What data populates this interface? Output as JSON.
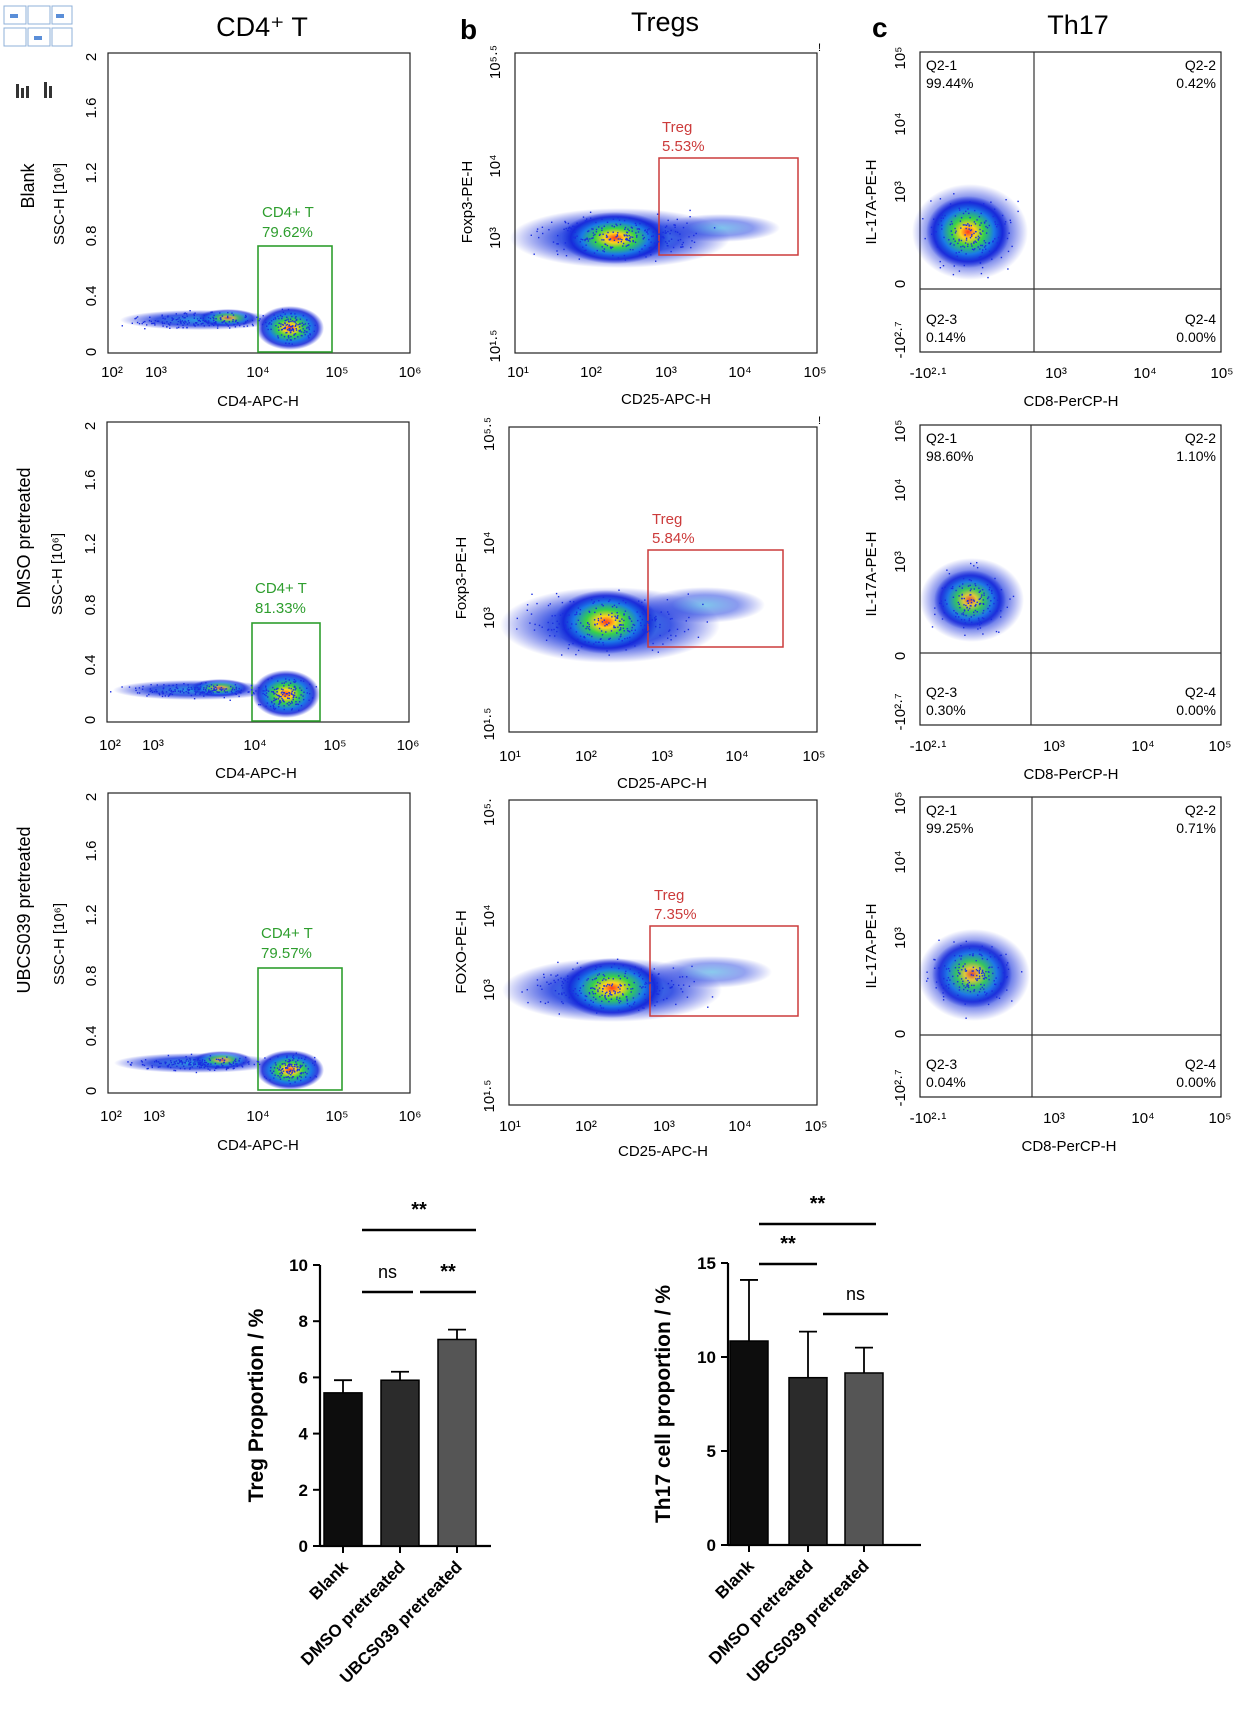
{
  "colors": {
    "cd4_gate": "#2e9e2e",
    "treg_gate": "#cc3b3b",
    "bar_blank": "#0d0d0d",
    "bar_dmso": "#2b2b2b",
    "bar_ubcs": "#555555",
    "quad_line": "#333333"
  },
  "column_titles": {
    "a": "CD4⁺ T",
    "b": "Tregs",
    "c": "Th17"
  },
  "panel_letters": {
    "b": "b",
    "c": "c"
  },
  "row_labels": [
    "Blank",
    "DMSO pretreated",
    "UBCS039 pretreated"
  ],
  "cd4_panels": [
    {
      "ylabel": "SSC-H [10⁶]",
      "xlabel": "CD4-APC-H",
      "gate_name": "CD4+ T",
      "gate_pct": "79.62%"
    },
    {
      "ylabel": "SSC-H [10⁶]",
      "xlabel": "CD4-APC-H",
      "gate_name": "CD4+ T",
      "gate_pct": "81.33%"
    },
    {
      "ylabel": "SSC-H [10⁶]",
      "xlabel": "CD4-APC-H",
      "gate_name": "CD4+ T",
      "gate_pct": "79.57%"
    }
  ],
  "cd4_y_ticks": [
    "2",
    "1.6",
    "1.2",
    "0.8",
    "0.4",
    "0"
  ],
  "cd4_x_ticks": [
    "10²",
    "10³",
    "10⁴",
    "10⁵",
    "10⁶"
  ],
  "treg_panels": [
    {
      "ylabel": "Foxp3-PE-H",
      "xlabel": "CD25-APC-H",
      "gate_name": "Treg",
      "gate_pct": "5.53%",
      "y_ticks": [
        "10⁵·⁵",
        "10⁴",
        "10³",
        "10¹·⁵"
      ]
    },
    {
      "ylabel": "Foxp3-PE-H",
      "xlabel": "CD25-APC-H",
      "gate_name": "Treg",
      "gate_pct": "5.84%",
      "y_ticks": [
        "10⁵·⁵",
        "10⁴",
        "10³",
        "10¹·⁵"
      ]
    },
    {
      "ylabel": "FOXO-PE-H",
      "xlabel": "CD25-APC-H",
      "gate_name": "Treg",
      "gate_pct": "7.35%",
      "y_ticks": [
        "10⁵·",
        "10⁴",
        "10³",
        "10¹·⁵"
      ]
    }
  ],
  "treg_x_ticks": [
    "10¹",
    "10²",
    "10³",
    "10⁴",
    "10⁵"
  ],
  "th17_panels": [
    {
      "ylabel": "IL-17A-PE-H",
      "xlabel": "CD8-PerCP-H",
      "q1": "Q2-1",
      "q1v": "99.44%",
      "q2": "Q2-2",
      "q2v": "0.42%",
      "q3": "Q2-3",
      "q3v": "0.14%",
      "q4": "Q2-4",
      "q4v": "0.00%",
      "y_ticks": [
        "10⁵",
        "10⁴",
        "10³",
        "0",
        "-10²·⁷"
      ]
    },
    {
      "ylabel": "IL-17A-PE-H",
      "xlabel": "CD8-PerCP-H",
      "q1": "Q2-1",
      "q1v": "98.60%",
      "q2": "Q2-2",
      "q2v": "1.10%",
      "q3": "Q2-3",
      "q3v": "0.30%",
      "q4": "Q2-4",
      "q4v": "0.00%",
      "y_ticks": [
        "10⁵",
        "10⁴",
        "10³",
        "0",
        "-10²·⁷"
      ]
    },
    {
      "ylabel": "IL-17A-PE-H",
      "xlabel": "CD8-PerCP-H",
      "q1": "Q2-1",
      "q1v": "99.25%",
      "q2": "Q2-2",
      "q2v": "0.71%",
      "q3": "Q2-3",
      "q3v": "0.04%",
      "q4": "Q2-4",
      "q4v": "0.00%",
      "y_ticks": [
        "10⁵",
        "10⁴",
        "10³",
        "0",
        "-10²·⁷"
      ]
    }
  ],
  "th17_x_ticks": [
    "-10²·¹",
    "10³",
    "10⁴",
    "10⁵"
  ],
  "chart_data": [
    {
      "type": "bar",
      "title": "",
      "ylabel": "Treg Proportion / %",
      "xlabel": "",
      "categories": [
        "Blank",
        "DMSO pretreated",
        "UBCS039 pretreated"
      ],
      "values": [
        5.45,
        5.9,
        7.35
      ],
      "errors": [
        0.45,
        0.3,
        0.35
      ],
      "ylim": [
        0,
        10
      ],
      "y_ticks": [
        "0",
        "2",
        "4",
        "6",
        "8",
        "10"
      ],
      "significance": [
        {
          "pair": "Blank vs UBCS039 pretreated",
          "label": "**"
        },
        {
          "pair": "Blank vs DMSO pretreated",
          "label": "ns"
        },
        {
          "pair": "DMSO pretreated vs UBCS039 pretreated",
          "label": "**"
        }
      ]
    },
    {
      "type": "bar",
      "title": "",
      "ylabel": "Th17 cell proportion / %",
      "xlabel": "",
      "categories": [
        "Blank",
        "DMSO pretreated",
        "UBCS039 pretreated"
      ],
      "values": [
        10.85,
        8.9,
        9.15
      ],
      "errors": [
        3.25,
        2.45,
        1.35
      ],
      "ylim": [
        0,
        15
      ],
      "y_ticks": [
        "0",
        "5",
        "10",
        "15"
      ],
      "significance": [
        {
          "pair": "Blank vs UBCS039 pretreated",
          "label": "**"
        },
        {
          "pair": "Blank vs DMSO pretreated",
          "label": "**"
        },
        {
          "pair": "DMSO pretreated vs UBCS039 pretreated",
          "label": "ns"
        }
      ]
    }
  ]
}
